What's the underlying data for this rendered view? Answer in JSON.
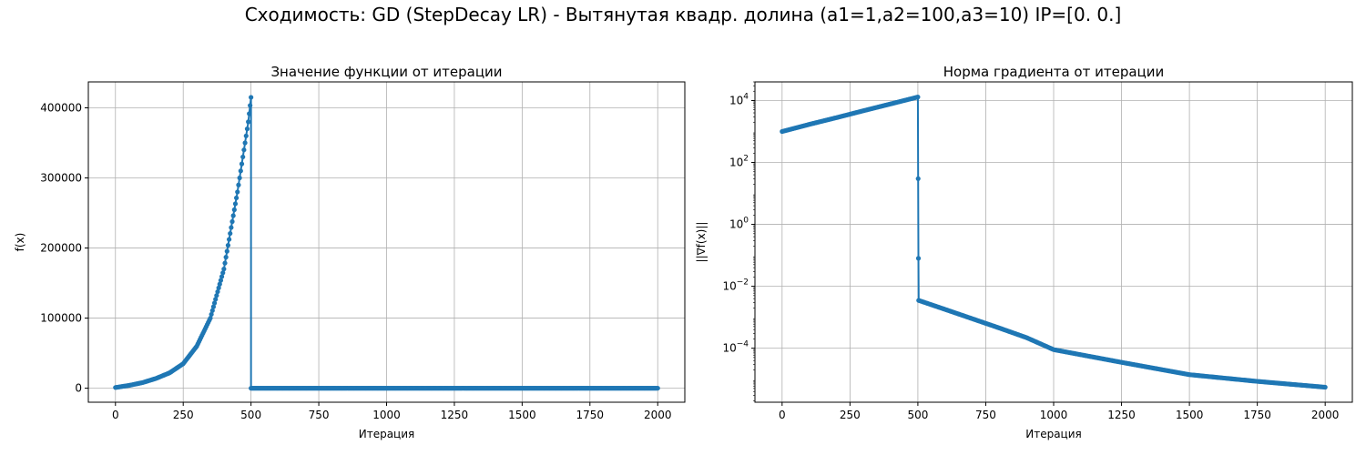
{
  "figure_title": "Сходимость: GD (StepDecay LR) - Вытянутая квадр. долина (a1=1,a2=100,a3=10) IP=[0. 0.]",
  "colors": {
    "series": "#1f77b4",
    "grid": "#b0b0b0",
    "axis": "#000000"
  },
  "chart_data": [
    {
      "type": "line",
      "title": "Значение функции от итерации",
      "xlabel": "Итерация",
      "ylabel": "f(x)",
      "xlim": [
        -100,
        2100
      ],
      "ylim": [
        -20000,
        437000
      ],
      "yscale": "linear",
      "grid": true,
      "marker": "dot",
      "xticks": [
        0,
        250,
        500,
        750,
        1000,
        1250,
        1500,
        1750,
        2000
      ],
      "yticks": [
        0,
        100000,
        200000,
        300000,
        400000
      ],
      "ytick_labels": [
        "0",
        "100000",
        "200000",
        "300000",
        "400000"
      ],
      "series": [
        {
          "x": [
            0,
            50,
            100,
            150,
            200,
            250,
            300,
            350,
            400,
            450,
            490,
            500,
            500,
            750,
            1000,
            1250,
            1500,
            1750,
            2000
          ],
          "y": [
            1000,
            4000,
            8000,
            14000,
            22000,
            35000,
            60000,
            100000,
            170000,
            280000,
            380000,
            415000,
            0,
            0,
            0,
            0,
            0,
            0,
            0
          ]
        }
      ]
    },
    {
      "type": "line",
      "title": "Норма градиента от итерации",
      "xlabel": "Итерация",
      "ylabel": "||∇f(x)||",
      "xlim": [
        -100,
        2100
      ],
      "ylim": [
        1.8e-06,
        40000
      ],
      "yscale": "log",
      "grid": true,
      "marker": "dot",
      "xticks": [
        0,
        250,
        500,
        750,
        1000,
        1250,
        1500,
        1750,
        2000
      ],
      "yticks": [
        0.0001,
        0.01,
        1,
        100,
        10000
      ],
      "ytick_labels": [
        {
          "base": "10",
          "exp": "−4"
        },
        {
          "base": "10",
          "exp": "−2"
        },
        {
          "base": "10",
          "exp": "0"
        },
        {
          "base": "10",
          "exp": "2"
        },
        {
          "base": "10",
          "exp": "4"
        }
      ],
      "series": [
        {
          "x": [
            0,
            100,
            200,
            300,
            400,
            500,
            501,
            502,
            503,
            600,
            700,
            800,
            900,
            1000,
            1250,
            1500,
            1750,
            2000
          ],
          "y": [
            1000,
            1700,
            2800,
            4700,
            7800,
            13000,
            30,
            0.08,
            0.0035,
            0.0018,
            0.0009,
            0.00045,
            0.00022,
            9e-05,
            3.5e-05,
            1.4e-05,
            8.5e-06,
            5.5e-06
          ]
        }
      ]
    }
  ]
}
